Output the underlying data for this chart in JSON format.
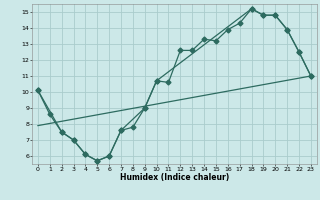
{
  "xlabel": "Humidex (Indice chaleur)",
  "bg_color": "#cce8e8",
  "grid_color": "#aacccc",
  "line_color": "#2d6b60",
  "xlim": [
    -0.5,
    23.5
  ],
  "ylim": [
    5.5,
    15.5
  ],
  "yticks": [
    6,
    7,
    8,
    9,
    10,
    11,
    12,
    13,
    14,
    15
  ],
  "xticks": [
    0,
    1,
    2,
    3,
    4,
    5,
    6,
    7,
    8,
    9,
    10,
    11,
    12,
    13,
    14,
    15,
    16,
    17,
    18,
    19,
    20,
    21,
    22,
    23
  ],
  "line1_x": [
    0,
    1,
    2,
    3,
    4,
    5,
    6,
    7,
    8,
    9,
    10,
    11,
    12,
    13,
    14,
    15,
    16,
    17,
    18,
    19,
    20,
    21,
    22,
    23
  ],
  "line1_y": [
    10.1,
    8.6,
    7.5,
    7.0,
    6.1,
    5.7,
    6.0,
    7.6,
    7.8,
    9.0,
    10.7,
    10.6,
    12.6,
    12.6,
    13.3,
    13.2,
    13.9,
    14.3,
    15.2,
    14.8,
    14.8,
    13.9,
    12.5,
    11.0
  ],
  "line2_x": [
    0,
    2,
    3,
    4,
    5,
    6,
    7,
    9,
    10,
    18,
    19,
    20,
    21,
    22,
    23
  ],
  "line2_y": [
    10.1,
    7.5,
    7.0,
    6.1,
    5.7,
    6.0,
    7.6,
    9.0,
    10.7,
    15.2,
    14.8,
    14.8,
    13.9,
    12.5,
    11.0
  ],
  "line3_x": [
    0,
    23
  ],
  "line3_y": [
    7.9,
    11.0
  ],
  "markersize": 2.5,
  "lw": 0.9
}
